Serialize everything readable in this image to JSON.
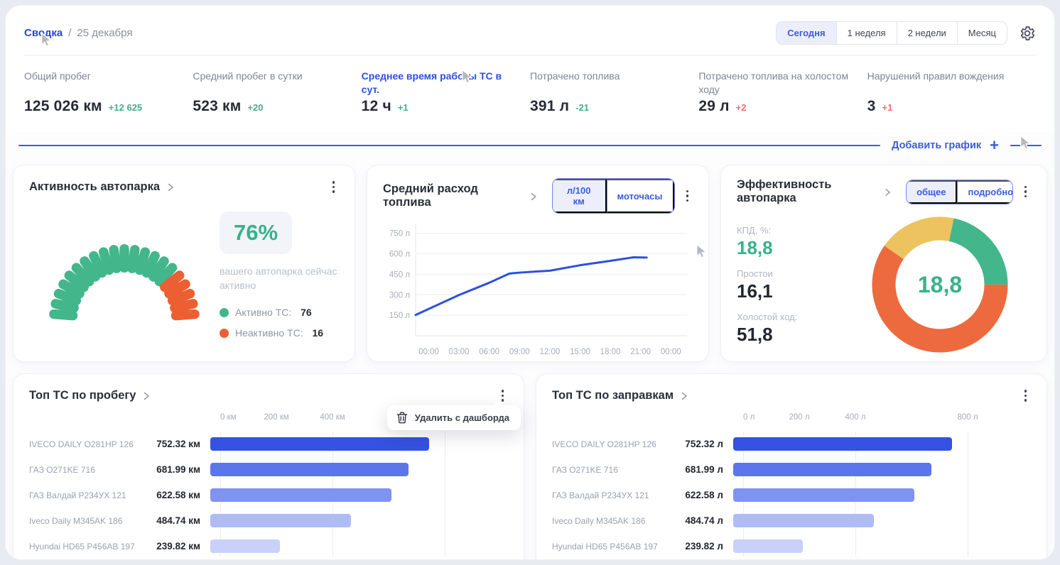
{
  "breadcrumb": {
    "section": "Сводка",
    "separator": "/",
    "date": "25 декабря"
  },
  "period_tabs": [
    {
      "label": "Сегодня",
      "active": true
    },
    {
      "label": "1 неделя",
      "active": false
    },
    {
      "label": "2 недели",
      "active": false
    },
    {
      "label": "Месяц",
      "active": false
    }
  ],
  "icons": {
    "settings": "gear",
    "add_chart": "plus",
    "card_menu": "kebab-vertical",
    "delete": "trash",
    "pointer": "mouse-cursor",
    "title_arrow": "chevron-right"
  },
  "kpis": [
    {
      "label": "Общий пробег",
      "value": "125 026 км",
      "delta": "+12 625",
      "delta_color": "green",
      "link": false
    },
    {
      "label": "Средний пробег в сутки",
      "value": "523 км",
      "delta": "+20",
      "delta_color": "green",
      "link": false
    },
    {
      "label": "Среднее время работы ТС в сут.",
      "value": "12 ч",
      "delta": "+1",
      "delta_color": "green",
      "link": true
    },
    {
      "label": "Потрачено топлива",
      "value": "391 л",
      "delta": "-21",
      "delta_color": "green",
      "link": false
    },
    {
      "label": "Потрачено топлива на холостом ходу",
      "value": "29 л",
      "delta": "+2",
      "delta_color": "red",
      "link": false
    },
    {
      "label": "Нарушений правил вождения",
      "value": "3",
      "delta": "+1",
      "delta_color": "red",
      "link": false
    }
  ],
  "add_chart": {
    "label": "Добавить график",
    "plus": "+"
  },
  "activity_card": {
    "title": "Активность автопарка",
    "percent_label": "76%",
    "caption": "вашего автопарка сейчас активно",
    "legend": [
      {
        "label": "Активно ТС:",
        "value": "76",
        "color": "#43b68b"
      },
      {
        "label": "Неактивно ТС:",
        "value": "16",
        "color": "#ec5f33"
      }
    ],
    "chart_data": {
      "type": "gauge",
      "percent": 76,
      "segments": 21,
      "active_color": "#43b68b",
      "inactive_color": "#ec5f33"
    }
  },
  "fuel_card": {
    "title": "Средний расход топлива",
    "toggles": [
      {
        "label": "л/100 км",
        "active": true
      },
      {
        "label": "моточасы",
        "active": false
      }
    ],
    "chart_data": {
      "type": "line",
      "color": "#2b50e2",
      "y_ticks": [
        {
          "value": 750,
          "label": "750 л"
        },
        {
          "value": 600,
          "label": "600 л"
        },
        {
          "value": 450,
          "label": "450 л"
        },
        {
          "value": 300,
          "label": "300 л"
        },
        {
          "value": 150,
          "label": "150 л"
        }
      ],
      "y_max": 800,
      "x_ticks": [
        {
          "hour": 0,
          "label": "00:00"
        },
        {
          "hour": 3,
          "label": "03:00"
        },
        {
          "hour": 6,
          "label": "06:00"
        },
        {
          "hour": 9,
          "label": "09:00"
        },
        {
          "hour": 12,
          "label": "12:00"
        },
        {
          "hour": 15,
          "label": "15:00"
        },
        {
          "hour": 18,
          "label": "18:00"
        },
        {
          "hour": 21,
          "label": "21:00"
        },
        {
          "hour": 24,
          "label": "00:00"
        }
      ],
      "points": [
        [
          -1.3,
          152
        ],
        [
          3,
          298
        ],
        [
          6,
          388
        ],
        [
          8,
          455
        ],
        [
          9,
          462
        ],
        [
          12,
          476
        ],
        [
          15,
          516
        ],
        [
          18,
          548
        ],
        [
          20.3,
          574
        ],
        [
          21.6,
          572
        ]
      ]
    }
  },
  "efficiency_card": {
    "title": "Эффективность автопарка",
    "toggles": [
      {
        "label": "общее",
        "active": true
      },
      {
        "label": "подробно",
        "active": false
      }
    ],
    "stats": [
      {
        "label": "КПД, %:",
        "value": "18,8",
        "green": true
      },
      {
        "label": "Простои",
        "value": "16,1",
        "green": false
      },
      {
        "label": "Холостой ход:",
        "value": "51,8",
        "green": false
      }
    ],
    "chart_data": {
      "type": "pie",
      "center_label": "18,8",
      "center_color": "#37b28a",
      "start_angle": -55,
      "segments": [
        {
          "name": "Простои",
          "value": 16.1,
          "color": "#ecc35e"
        },
        {
          "name": "КПД",
          "value": 18.8,
          "color": "#43b68b"
        },
        {
          "name": "Холостой ход",
          "value": 51.8,
          "color": "#ec6a3e"
        }
      ]
    }
  },
  "top_mileage_card": {
    "title": "Топ ТС по пробегу",
    "menu": {
      "label": "Удалить с дашборда"
    },
    "chart_data": {
      "type": "bar",
      "axis_ticks": [
        {
          "label": "0 км",
          "pos": 0
        },
        {
          "label": "200 км",
          "pos": 20
        },
        {
          "label": "400 км",
          "pos": 40
        }
      ],
      "gridlines": [
        0,
        40,
        80
      ],
      "scale_max": 1000,
      "rows": [
        {
          "label": "IVECO DAILY O281HP 126",
          "value": "752.32 км",
          "num": 752.32,
          "color": "#3552e2"
        },
        {
          "label": "ГАЗ O271KE 716",
          "value": "681.99 км",
          "num": 681.99,
          "color": "#5b76ec"
        },
        {
          "label": "ГАЗ Валдай P234УХ 121",
          "value": "622.58 км",
          "num": 622.58,
          "color": "#7f93f0"
        },
        {
          "label": "Iveco Daily M345AK 186",
          "value": "484.74 км",
          "num": 484.74,
          "color": "#aebcf6"
        },
        {
          "label": "Hyundai HD65 P456AB 197",
          "value": "239.82 км",
          "num": 239.82,
          "color": "#c7d1fa"
        }
      ]
    }
  },
  "top_fuel_card": {
    "title": "Топ ТС по заправкам",
    "chart_data": {
      "type": "bar",
      "axis_ticks": [
        {
          "label": "0 л",
          "pos": 0
        },
        {
          "label": "200 л",
          "pos": 20
        },
        {
          "label": "400 л",
          "pos": 40
        },
        {
          "label": "800 л",
          "pos": 80
        }
      ],
      "gridlines": [
        0,
        40,
        80
      ],
      "scale_max": 1000,
      "rows": [
        {
          "label": "IVECO DAILY O281HP 126",
          "value": "752.32 л",
          "num": 752.32,
          "color": "#3552e2"
        },
        {
          "label": "ГАЗ O271KE 716",
          "value": "681.99 л",
          "num": 681.99,
          "color": "#5b76ec"
        },
        {
          "label": "ГАЗ Валдай P234УХ 121",
          "value": "622.58 л",
          "num": 622.58,
          "color": "#7f93f0"
        },
        {
          "label": "Iveco Daily M345AK 186",
          "value": "484.74 л",
          "num": 484.74,
          "color": "#aebcf6"
        },
        {
          "label": "Hyundai HD65 P456AB 197",
          "value": "239.82 л",
          "num": 239.82,
          "color": "#c7d1fa"
        }
      ]
    }
  }
}
